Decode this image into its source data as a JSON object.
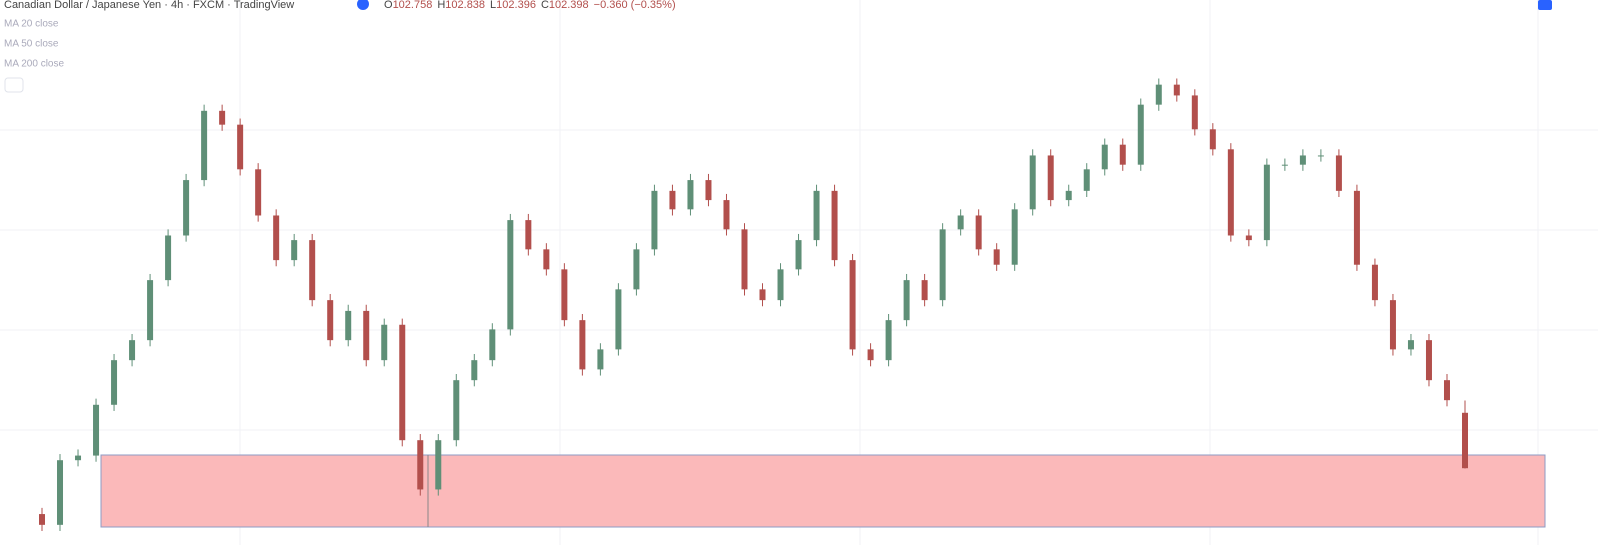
{
  "header": {
    "symbol": "Canadian Dollar / Japanese Yen · 4h · FXCM · TradingView",
    "ohlc_letters": [
      "O",
      "H",
      "L",
      "C"
    ],
    "change": "−0.360 (−0.35%)",
    "indicators": [
      "MA 20 close",
      "MA 50 close",
      "MA 200 close"
    ]
  },
  "chart_data": {
    "type": "candlestick",
    "up_color": "#5f8f77",
    "down_color": "#b24f4c",
    "open": [
      102.1,
      102.03,
      102.45,
      102.48,
      102.81,
      103.1,
      103.23,
      103.62,
      103.91,
      104.27,
      104.72,
      104.63,
      104.34,
      104.04,
      103.75,
      103.88,
      103.49,
      103.23,
      103.42,
      103.1,
      103.33,
      102.58,
      102.26,
      102.58,
      102.97,
      103.1,
      103.3,
      104.01,
      103.82,
      103.69,
      103.36,
      103.04,
      103.17,
      103.56,
      103.82,
      104.2,
      104.08,
      104.27,
      104.14,
      103.95,
      103.56,
      103.49,
      103.69,
      103.88,
      104.2,
      103.75,
      103.17,
      103.1,
      103.36,
      103.62,
      103.49,
      103.95,
      104.04,
      103.82,
      103.72,
      104.08,
      104.43,
      104.14,
      104.2,
      104.34,
      104.5,
      104.37,
      104.76,
      104.89,
      104.82,
      104.6,
      104.47,
      103.91,
      103.88,
      104.37,
      104.37,
      104.43,
      104.43,
      104.2,
      103.72,
      103.49,
      103.17,
      103.23,
      102.97,
      102.758
    ],
    "high": [
      102.14,
      102.49,
      102.52,
      102.85,
      103.14,
      103.27,
      103.66,
      103.95,
      104.31,
      104.76,
      104.76,
      104.67,
      104.38,
      104.08,
      103.92,
      103.92,
      103.53,
      103.46,
      103.46,
      103.37,
      103.37,
      102.62,
      102.62,
      103.01,
      103.14,
      103.34,
      104.05,
      104.05,
      103.86,
      103.73,
      103.4,
      103.21,
      103.6,
      103.86,
      104.24,
      104.24,
      104.31,
      104.31,
      104.18,
      103.99,
      103.6,
      103.73,
      103.92,
      104.24,
      104.24,
      103.79,
      103.21,
      103.4,
      103.66,
      103.66,
      103.99,
      104.08,
      104.08,
      103.86,
      104.12,
      104.47,
      104.47,
      104.24,
      104.38,
      104.54,
      104.54,
      104.8,
      104.93,
      104.93,
      104.86,
      104.64,
      104.51,
      103.95,
      104.41,
      104.41,
      104.47,
      104.47,
      104.47,
      104.24,
      103.76,
      103.53,
      103.27,
      103.27,
      103.01,
      102.838
    ],
    "low": [
      101.99,
      101.99,
      102.41,
      102.44,
      102.77,
      103.06,
      103.19,
      103.58,
      103.87,
      104.23,
      104.59,
      104.3,
      104.0,
      103.71,
      103.71,
      103.45,
      103.19,
      103.19,
      103.06,
      103.06,
      102.54,
      102.22,
      102.22,
      102.54,
      102.93,
      103.06,
      103.26,
      103.78,
      103.65,
      103.32,
      103.0,
      103.0,
      103.13,
      103.52,
      103.78,
      104.04,
      104.04,
      104.1,
      103.91,
      103.52,
      103.45,
      103.45,
      103.65,
      103.84,
      103.71,
      103.13,
      103.06,
      103.06,
      103.32,
      103.45,
      103.45,
      103.91,
      103.78,
      103.68,
      103.68,
      104.04,
      104.1,
      104.1,
      104.16,
      104.3,
      104.33,
      104.33,
      104.72,
      104.78,
      104.56,
      104.43,
      103.87,
      103.84,
      103.84,
      104.33,
      104.33,
      104.39,
      104.16,
      103.68,
      103.45,
      103.13,
      103.13,
      102.93,
      102.8,
      102.396
    ],
    "close": [
      102.03,
      102.45,
      102.48,
      102.81,
      103.1,
      103.23,
      103.62,
      103.91,
      104.27,
      104.72,
      104.63,
      104.34,
      104.04,
      103.75,
      103.88,
      103.49,
      103.23,
      103.42,
      103.1,
      103.33,
      102.58,
      102.26,
      102.58,
      102.97,
      103.1,
      103.3,
      104.01,
      103.82,
      103.69,
      103.36,
      103.04,
      103.17,
      103.56,
      103.82,
      104.2,
      104.08,
      104.27,
      104.14,
      103.95,
      103.56,
      103.49,
      103.69,
      103.88,
      104.2,
      103.75,
      103.17,
      103.1,
      103.36,
      103.62,
      103.49,
      103.95,
      104.04,
      103.82,
      103.72,
      104.08,
      104.43,
      104.14,
      104.2,
      104.34,
      104.5,
      104.37,
      104.76,
      104.89,
      104.82,
      104.6,
      104.47,
      103.91,
      103.88,
      104.37,
      104.37,
      104.43,
      104.43,
      104.2,
      103.72,
      103.49,
      103.17,
      103.23,
      102.97,
      102.84,
      102.398
    ]
  }
}
